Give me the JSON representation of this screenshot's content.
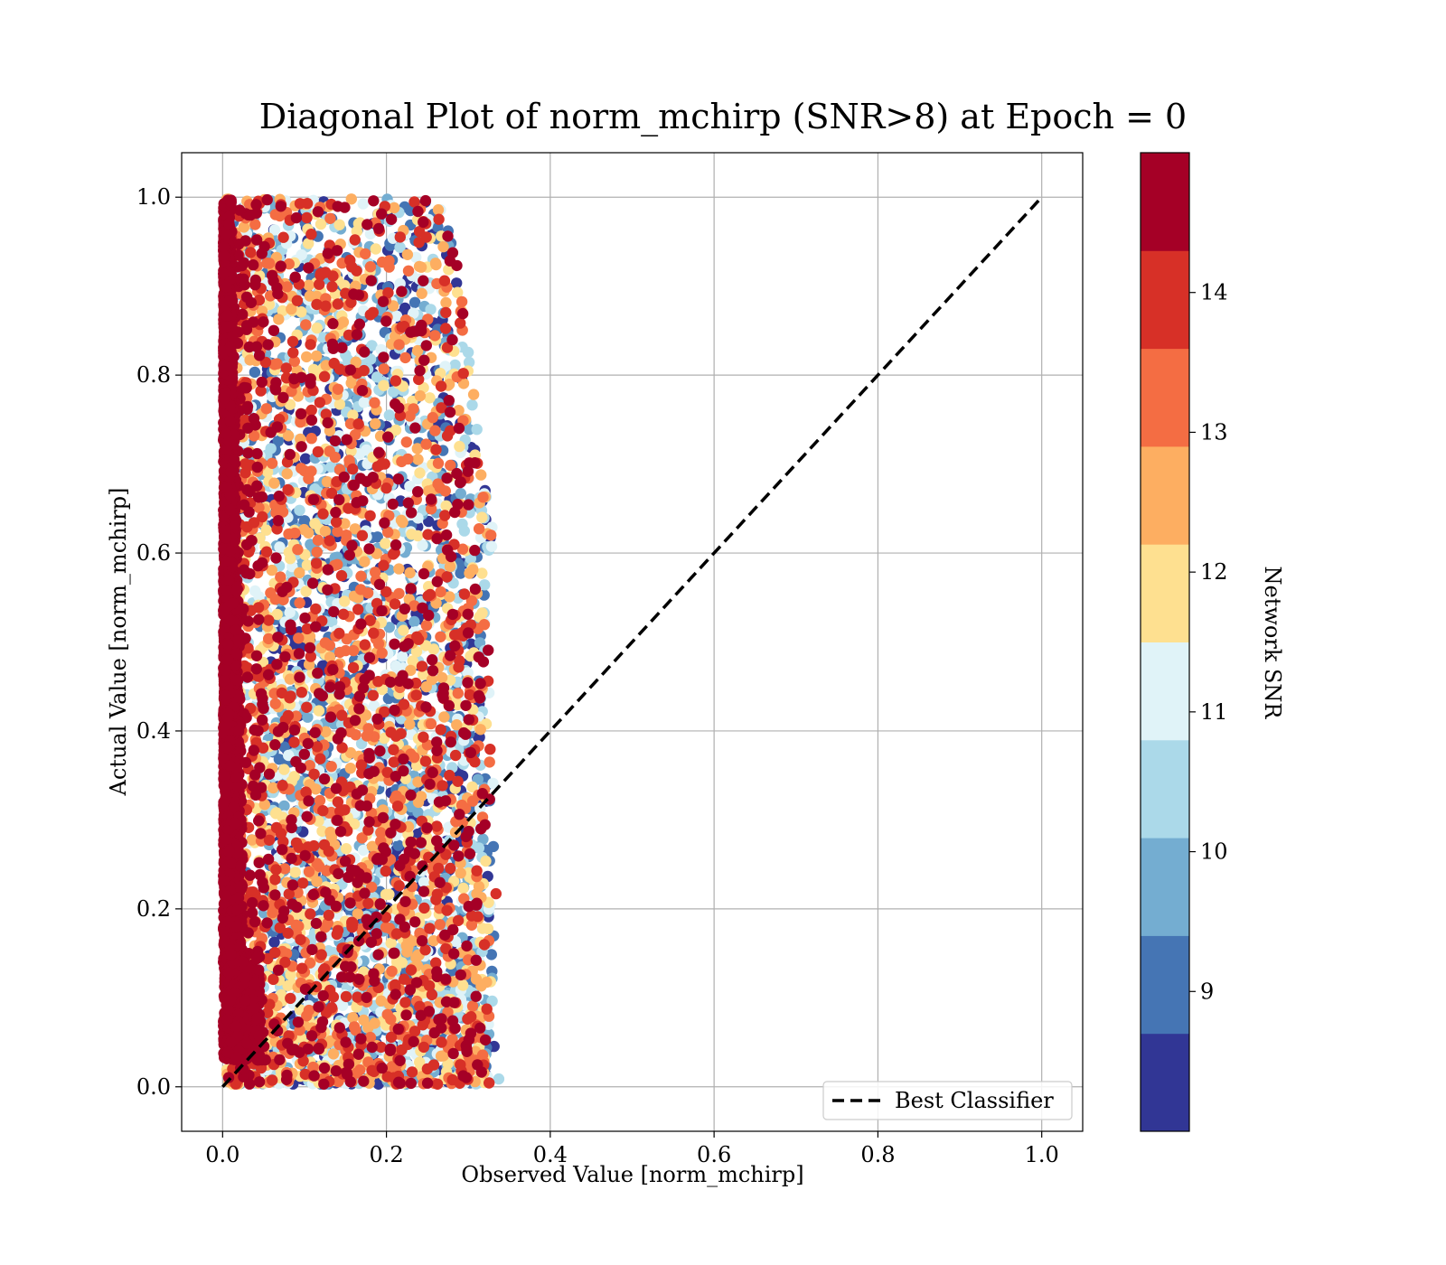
{
  "chart_data": {
    "type": "scatter",
    "title": "Diagonal Plot of norm_mchirp (SNR>8) at Epoch = 0",
    "xlabel": "Observed Value [norm_mchirp]",
    "ylabel": "Actual Value [norm_mchirp]",
    "xlim": [
      -0.05,
      1.05
    ],
    "ylim": [
      -0.05,
      1.05
    ],
    "x_ticks": [
      0.0,
      0.2,
      0.4,
      0.6,
      0.8,
      1.0
    ],
    "y_ticks": [
      0.0,
      0.2,
      0.4,
      0.6,
      0.8,
      1.0
    ],
    "x_tick_labels": [
      "0.0",
      "0.2",
      "0.4",
      "0.6",
      "0.8",
      "1.0"
    ],
    "y_tick_labels": [
      "0.0",
      "0.2",
      "0.4",
      "0.6",
      "0.8",
      "1.0"
    ],
    "grid": true,
    "legend": {
      "placement": "lower-right",
      "entries": [
        {
          "label": "Best Classifier",
          "style": "dashed",
          "color": "#000000"
        }
      ]
    },
    "reference_line": {
      "name": "Best Classifier",
      "x": [
        0.0,
        1.0
      ],
      "y": [
        0.0,
        1.0
      ]
    },
    "colorbar": {
      "label": "Network SNR",
      "range": [
        8.0,
        15.0
      ],
      "tick_values": [
        9,
        10,
        11,
        12,
        13,
        14
      ],
      "tick_labels": [
        "9",
        "10",
        "11",
        "12",
        "13",
        "14"
      ],
      "colors": [
        "#313695",
        "#4575b4",
        "#74add1",
        "#abd9e9",
        "#e0f3f8",
        "#fee090",
        "#fdae61",
        "#f46d43",
        "#d73027",
        "#a50026"
      ]
    },
    "scatter_summary": {
      "x_range": [
        0.0,
        0.335
      ],
      "y_range": [
        0.0,
        1.0
      ],
      "snr_range": [
        8.0,
        15.0
      ],
      "description_note": "dense cloud of points; high-SNR points concentrated near x≈0"
    }
  }
}
